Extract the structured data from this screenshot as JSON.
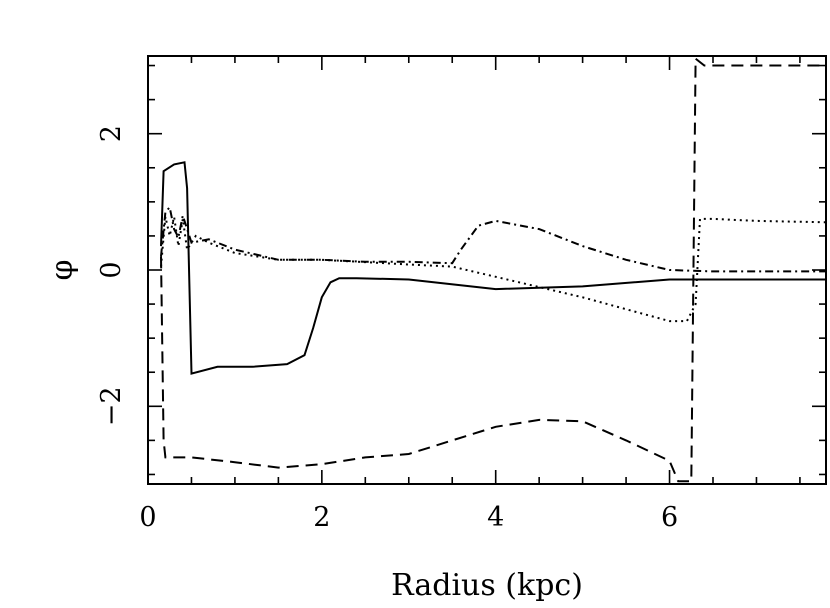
{
  "chart_data": {
    "type": "line",
    "xlabel": "Radius (kpc)",
    "ylabel": "φ",
    "xlim": [
      0,
      7.8
    ],
    "ylim": [
      -3.14,
      3.14
    ],
    "xticks": [
      0,
      2,
      4,
      6
    ],
    "yticks": [
      -2,
      0,
      2
    ],
    "xtick_labels": [
      "0",
      "2",
      "4",
      "6"
    ],
    "ytick_labels": [
      "−2",
      "0",
      "2"
    ],
    "grid": false,
    "series": [
      {
        "style": "solid",
        "x": [
          0.15,
          0.18,
          0.3,
          0.42,
          0.45,
          0.5,
          0.8,
          1.2,
          1.6,
          1.8,
          1.9,
          2.0,
          2.1,
          2.2,
          2.4,
          3.0,
          4.0,
          5.0,
          6.0,
          7.0,
          7.8
        ],
        "y": [
          0.35,
          1.45,
          1.55,
          1.58,
          1.2,
          -1.52,
          -1.42,
          -1.42,
          -1.38,
          -1.25,
          -0.85,
          -0.4,
          -0.18,
          -0.12,
          -0.12,
          -0.14,
          -0.28,
          -0.24,
          -0.14,
          -0.14,
          -0.14
        ]
      },
      {
        "style": "dotted",
        "x": [
          0.15,
          0.2,
          0.25,
          0.3,
          0.35,
          0.4,
          0.45,
          0.55,
          0.7,
          1.0,
          1.5,
          2.0,
          3.0,
          3.5,
          4.0,
          5.0,
          6.0,
          6.2,
          6.3,
          6.35,
          6.5,
          7.0,
          7.8
        ],
        "y": [
          0.05,
          0.78,
          0.5,
          0.78,
          0.35,
          0.75,
          0.3,
          0.5,
          0.4,
          0.25,
          0.15,
          0.15,
          0.08,
          0.05,
          -0.1,
          -0.4,
          -0.75,
          -0.75,
          -0.5,
          0.75,
          0.75,
          0.72,
          0.7
        ]
      },
      {
        "style": "dash-dot",
        "x": [
          0.15,
          0.2,
          0.25,
          0.3,
          0.35,
          0.4,
          0.5,
          0.7,
          1.0,
          1.5,
          2.0,
          2.5,
          3.0,
          3.5,
          3.6,
          3.8,
          4.0,
          4.5,
          5.0,
          5.5,
          6.0,
          6.5,
          7.0,
          7.8
        ],
        "y": [
          0.2,
          0.85,
          0.92,
          0.6,
          0.48,
          0.8,
          0.4,
          0.45,
          0.3,
          0.15,
          0.15,
          0.12,
          0.12,
          0.1,
          0.3,
          0.65,
          0.72,
          0.6,
          0.35,
          0.15,
          0.0,
          -0.02,
          -0.02,
          -0.02
        ]
      },
      {
        "style": "dashed",
        "x": [
          0.15,
          0.18,
          0.2,
          0.25,
          0.35,
          0.5,
          1.0,
          1.5,
          2.0,
          2.5,
          3.0,
          3.5,
          4.0,
          4.5,
          5.0,
          5.5,
          6.0,
          6.1,
          6.2,
          6.22,
          6.25,
          6.3,
          6.4,
          7.0,
          7.8
        ],
        "y": [
          0.2,
          -2.5,
          -2.75,
          -2.75,
          -2.75,
          -2.75,
          -2.82,
          -2.9,
          -2.85,
          -2.75,
          -2.7,
          -2.5,
          -2.3,
          -2.2,
          -2.22,
          -2.5,
          -2.8,
          -3.1,
          -3.1,
          -3.1,
          -3.1,
          3.1,
          3.0,
          3.0,
          3.0
        ]
      }
    ]
  }
}
